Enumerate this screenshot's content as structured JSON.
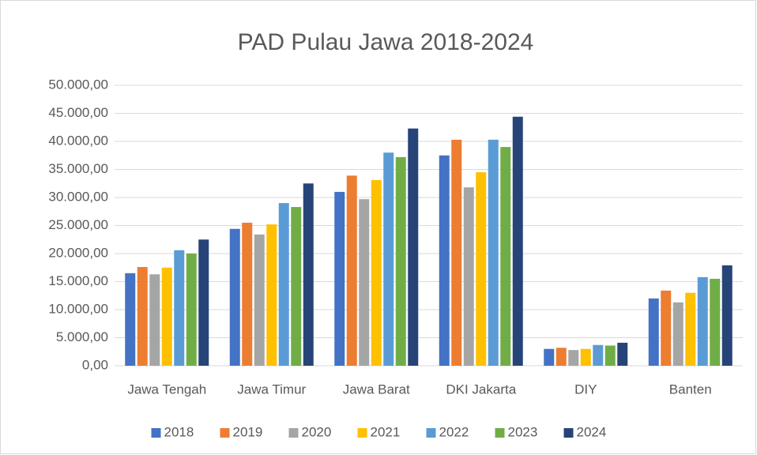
{
  "chart_data": {
    "type": "bar",
    "title": "PAD Pulau Jawa 2018-2024",
    "categories": [
      "Jawa Tengah",
      "Jawa Timur",
      "Jawa Barat",
      "DKI Jakarta",
      "DIY",
      "Banten"
    ],
    "series": [
      {
        "name": "2018",
        "color": "#4472c4",
        "values": [
          16500,
          24400,
          31000,
          37500,
          3000,
          12000
        ]
      },
      {
        "name": "2019",
        "color": "#ed7d31",
        "values": [
          17600,
          25500,
          33900,
          40300,
          3200,
          13400
        ]
      },
      {
        "name": "2020",
        "color": "#a5a5a5",
        "values": [
          16300,
          23400,
          29700,
          31800,
          2800,
          11300
        ]
      },
      {
        "name": "2021",
        "color": "#ffc000",
        "values": [
          17500,
          25200,
          33100,
          34500,
          3000,
          13000
        ]
      },
      {
        "name": "2022",
        "color": "#5b9bd5",
        "values": [
          20600,
          29000,
          38000,
          40300,
          3700,
          15800
        ]
      },
      {
        "name": "2023",
        "color": "#70ad47",
        "values": [
          20000,
          28300,
          37200,
          39000,
          3600,
          15500
        ]
      },
      {
        "name": "2024",
        "color": "#264478",
        "values": [
          22500,
          32500,
          42300,
          44400,
          4100,
          17900
        ]
      }
    ],
    "ylim": [
      0,
      50000
    ],
    "yticks": [
      {
        "value": 0,
        "label": "0,00"
      },
      {
        "value": 5000,
        "label": "5.000,00"
      },
      {
        "value": 10000,
        "label": "10.000,00"
      },
      {
        "value": 15000,
        "label": "15.000,00"
      },
      {
        "value": 20000,
        "label": "20.000,00"
      },
      {
        "value": 25000,
        "label": "25.000,00"
      },
      {
        "value": 30000,
        "label": "30.000,00"
      },
      {
        "value": 35000,
        "label": "35.000,00"
      },
      {
        "value": 40000,
        "label": "40.000,00"
      },
      {
        "value": 45000,
        "label": "45.000,00"
      },
      {
        "value": 50000,
        "label": "50.000,00"
      }
    ],
    "grid": true,
    "legend": "bottom"
  }
}
